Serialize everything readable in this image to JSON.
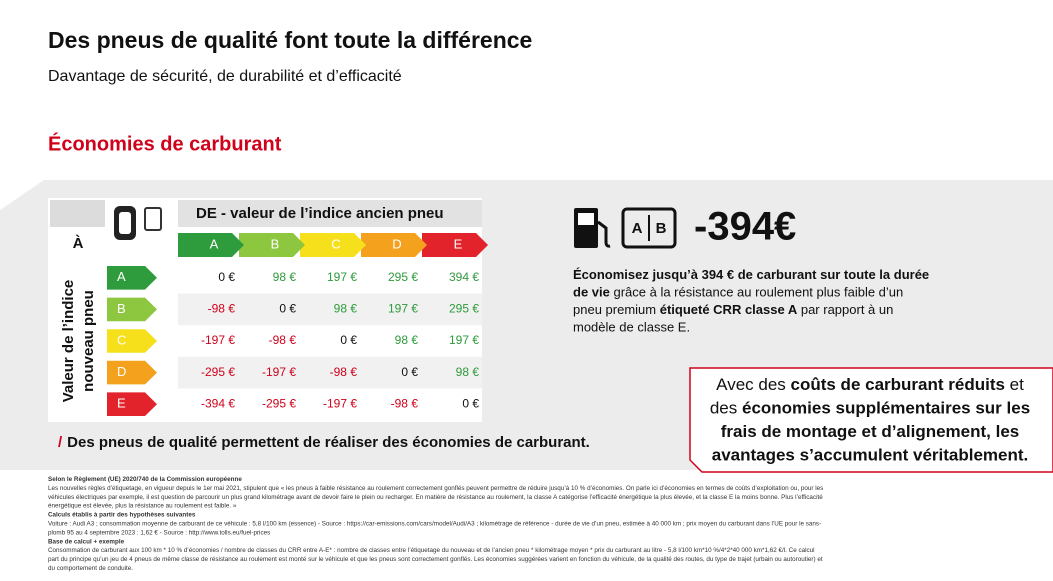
{
  "header": {
    "title": "Des pneus de qualité font toute la différence",
    "subtitle": "Davantage de sécurité, de durabilité et d’efficacité"
  },
  "section_title": "Économies de carburant",
  "table": {
    "corner": "À",
    "column_header": "DE - valeur de l’indice ancien pneu",
    "row_header": [
      "Valeur de l’indice",
      "nouveau pneu"
    ],
    "classes": [
      "A",
      "B",
      "C",
      "D",
      "E"
    ],
    "class_colors": [
      "#2e9b3c",
      "#8dc63f",
      "#f6e01b",
      "#f4a11e",
      "#e2232b"
    ],
    "rows": [
      [
        "0 €",
        "98 €",
        "197 €",
        "295 €",
        "394 €"
      ],
      [
        "-98 €",
        "0 €",
        "98 €",
        "197 €",
        "295 €"
      ],
      [
        "-197 €",
        "-98 €",
        "0 €",
        "98 €",
        "197 €"
      ],
      [
        "-295 €",
        "-197 €",
        "-98 €",
        "0 €",
        "98 €"
      ],
      [
        "-394 €",
        "-295 €",
        "-197 €",
        "-98 €",
        "0 €"
      ]
    ]
  },
  "savings": {
    "icon_label": [
      "A",
      "B"
    ],
    "amount": "-394€",
    "paragraph": [
      [
        {
          "text": "Économisez jusqu’à 394 € de carburant sur toute la durée",
          "bold": true
        }
      ],
      [
        {
          "text": "de vie",
          "bold": true
        },
        {
          "text": " grâce à la résistance au roulement plus faible d’un"
        }
      ],
      [
        {
          "text": "pneu premium "
        },
        {
          "text": "étiqueté CRR classe A",
          "bold": true
        },
        {
          "text": " par rapport à un"
        }
      ],
      [
        {
          "text": "modèle de classe E."
        }
      ]
    ]
  },
  "callout": [
    [
      {
        "text": "Avec des "
      },
      {
        "text": "coûts de carburant réduits",
        "bold": true
      },
      {
        "text": " et"
      }
    ],
    [
      {
        "text": "des "
      },
      {
        "text": "économies supplémentaires sur les",
        "bold": true
      }
    ],
    [
      {
        "text": "frais de montage et d’alignement, les",
        "bold": true
      }
    ],
    [
      {
        "text": "avantages s’accumulent véritablement.",
        "bold": true
      }
    ]
  ],
  "note": {
    "slash": "/",
    "text": "Des pneus de qualité permettent de réaliser des économies de carburant."
  },
  "fine_print": [
    [
      {
        "text": "Selon le Règlement (UE) 2020/740 de la Commission européenne",
        "bold": true
      }
    ],
    [
      {
        "text": "Les nouvelles règles d’étiquetage, en vigueur depuis le 1er mai 2021, stipulent que « les pneus à faible résistance au roulement correctement gonflés peuvent permettre de réduire jusqu’à 10 % d’économies. On parle ici d’économies en termes de coûts d’exploitation ou, pour les"
      }
    ],
    [
      {
        "text": "véhicules électriques par exemple, il est question de parcourir un plus grand kilométrage avant de devoir faire le plein ou recharger. En matière de résistance au roulement, la classe A catégorise l’efficacité énergétique la plus élevée, et la classe E la moins bonne. Plus l’efficacité"
      }
    ],
    [
      {
        "text": "énergétique est élevée, plus la résistance au roulement est faible. »"
      }
    ],
    [
      {
        "text": "Calculs établis à partir des hypothèses suivantes",
        "bold": true
      }
    ],
    [
      {
        "text": "Voiture : Audi A3 ; consommation moyenne de carburant de ce véhicule : 5,8 l/100 km (essence) - Source : https://car-emissions.com/cars/model/Audi/A3 ; kilométrage de référence - durée de vie d’un pneu, estimée à 40 000 km ; prix moyen du carburant dans l’UE pour le sans-"
      }
    ],
    [
      {
        "text": "plomb 95 au 4 septembre 2023 : 1,62 € - Source : http://www.tolls.eu/fuel-prices"
      }
    ],
    [
      {
        "text": "Base de calcul + exemple",
        "bold": true
      }
    ],
    [
      {
        "text": "Consommation de carburant aux 100 km * 10 % d’économies / nombre de classes du CRR entre A-E* : nombre de classes entre l’étiquetage du nouveau et de l’ancien pneu * kilométrage moyen * prix du carburant au litre - 5,8 l/100 km*10 %/4*2*40 000 km*1,62 €/l. Ce calcul"
      }
    ],
    [
      {
        "text": "part du principe qu’un jeu de 4 pneus de même classe de résistance au roulement est monté sur le véhicule et que les pneus sont correctement gonflés. Les économies suggérées varient en fonction du véhicule, de la qualité des routes, du type de trajet (urbain ou autoroutier) et"
      }
    ],
    [
      {
        "text": "du comportement de conduite."
      }
    ]
  ]
}
